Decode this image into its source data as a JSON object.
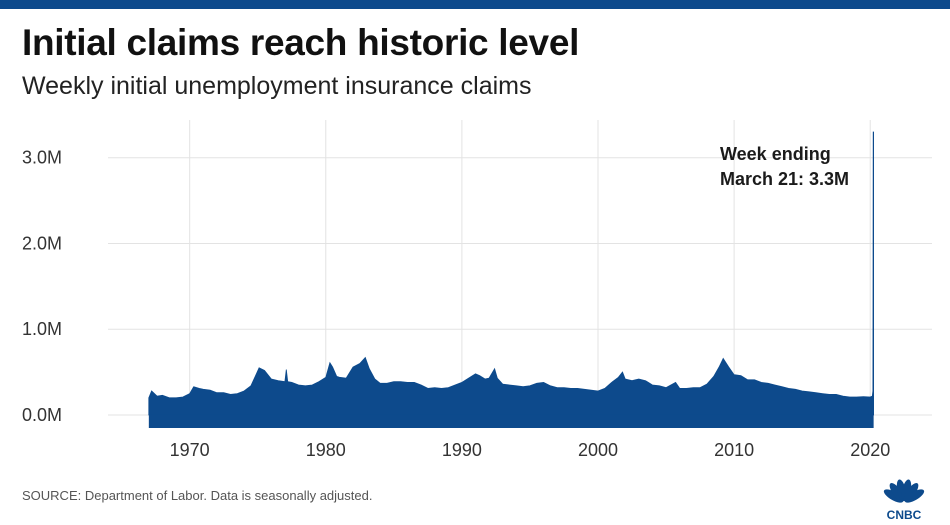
{
  "colors": {
    "accent": "#0d4a8c",
    "series": "#0d4a8c",
    "grid": "#e3e3e3"
  },
  "header": {
    "title": "Initial claims reach historic level",
    "subtitle": "Weekly initial unemployment insurance claims"
  },
  "footer": {
    "source": "SOURCE: Department of Labor. Data is seasonally adjusted.",
    "logo_text": "CNBC",
    "logo_icon": "peacock-icon"
  },
  "chart_data": {
    "type": "area",
    "ylim": [
      0,
      3300000
    ],
    "xlim": [
      1964.0,
      2021.6
    ],
    "grid": true,
    "y_ticks": [
      {
        "value": 0,
        "label": "0.0M"
      },
      {
        "value": 1000000,
        "label": "1.0M"
      },
      {
        "value": 2000000,
        "label": "2.0M"
      },
      {
        "value": 3000000,
        "label": "3.0M"
      }
    ],
    "x_ticks": [
      {
        "value": 1970,
        "label": "1970"
      },
      {
        "value": 1980,
        "label": "1980"
      },
      {
        "value": 1990,
        "label": "1990"
      },
      {
        "value": 2000,
        "label": "2000"
      },
      {
        "value": 2010,
        "label": "2010"
      },
      {
        "value": 2020,
        "label": "2020"
      }
    ],
    "series": [
      {
        "points": [
          [
            1967.0,
            200000
          ],
          [
            1967.2,
            280000
          ],
          [
            1967.6,
            220000
          ],
          [
            1968.0,
            230000
          ],
          [
            1968.5,
            200000
          ],
          [
            1969.0,
            200000
          ],
          [
            1969.5,
            210000
          ],
          [
            1970.0,
            250000
          ],
          [
            1970.3,
            330000
          ],
          [
            1970.7,
            310000
          ],
          [
            1971.0,
            300000
          ],
          [
            1971.5,
            290000
          ],
          [
            1972.0,
            260000
          ],
          [
            1972.5,
            260000
          ],
          [
            1973.0,
            240000
          ],
          [
            1973.5,
            250000
          ],
          [
            1974.0,
            280000
          ],
          [
            1974.5,
            340000
          ],
          [
            1974.9,
            480000
          ],
          [
            1975.1,
            550000
          ],
          [
            1975.5,
            520000
          ],
          [
            1976.0,
            420000
          ],
          [
            1976.5,
            400000
          ],
          [
            1977.0,
            390000
          ],
          [
            1977.1,
            530000
          ],
          [
            1977.2,
            390000
          ],
          [
            1977.5,
            380000
          ],
          [
            1978.0,
            350000
          ],
          [
            1978.5,
            340000
          ],
          [
            1979.0,
            350000
          ],
          [
            1979.5,
            390000
          ],
          [
            1980.0,
            440000
          ],
          [
            1980.3,
            610000
          ],
          [
            1980.5,
            560000
          ],
          [
            1980.8,
            450000
          ],
          [
            1981.0,
            440000
          ],
          [
            1981.5,
            430000
          ],
          [
            1982.0,
            560000
          ],
          [
            1982.5,
            600000
          ],
          [
            1982.9,
            670000
          ],
          [
            1983.2,
            540000
          ],
          [
            1983.6,
            420000
          ],
          [
            1984.0,
            370000
          ],
          [
            1984.5,
            370000
          ],
          [
            1985.0,
            390000
          ],
          [
            1985.5,
            390000
          ],
          [
            1986.0,
            380000
          ],
          [
            1986.5,
            380000
          ],
          [
            1987.0,
            350000
          ],
          [
            1987.5,
            310000
          ],
          [
            1988.0,
            320000
          ],
          [
            1988.5,
            310000
          ],
          [
            1989.0,
            320000
          ],
          [
            1989.5,
            350000
          ],
          [
            1990.0,
            380000
          ],
          [
            1990.5,
            430000
          ],
          [
            1991.0,
            480000
          ],
          [
            1991.3,
            460000
          ],
          [
            1991.7,
            420000
          ],
          [
            1992.0,
            430000
          ],
          [
            1992.4,
            540000
          ],
          [
            1992.6,
            430000
          ],
          [
            1993.0,
            360000
          ],
          [
            1993.5,
            350000
          ],
          [
            1994.0,
            340000
          ],
          [
            1994.5,
            330000
          ],
          [
            1995.0,
            340000
          ],
          [
            1995.5,
            370000
          ],
          [
            1996.0,
            380000
          ],
          [
            1996.5,
            340000
          ],
          [
            1997.0,
            320000
          ],
          [
            1997.5,
            320000
          ],
          [
            1998.0,
            310000
          ],
          [
            1998.5,
            310000
          ],
          [
            1999.0,
            300000
          ],
          [
            1999.5,
            290000
          ],
          [
            2000.0,
            280000
          ],
          [
            2000.5,
            310000
          ],
          [
            2001.0,
            380000
          ],
          [
            2001.5,
            440000
          ],
          [
            2001.8,
            500000
          ],
          [
            2002.0,
            420000
          ],
          [
            2002.5,
            400000
          ],
          [
            2003.0,
            420000
          ],
          [
            2003.5,
            400000
          ],
          [
            2004.0,
            350000
          ],
          [
            2004.5,
            340000
          ],
          [
            2005.0,
            320000
          ],
          [
            2005.7,
            380000
          ],
          [
            2006.0,
            310000
          ],
          [
            2006.5,
            310000
          ],
          [
            2007.0,
            320000
          ],
          [
            2007.5,
            320000
          ],
          [
            2008.0,
            360000
          ],
          [
            2008.5,
            450000
          ],
          [
            2008.9,
            560000
          ],
          [
            2009.2,
            660000
          ],
          [
            2009.6,
            560000
          ],
          [
            2010.0,
            470000
          ],
          [
            2010.5,
            460000
          ],
          [
            2011.0,
            410000
          ],
          [
            2011.5,
            410000
          ],
          [
            2012.0,
            380000
          ],
          [
            2012.5,
            370000
          ],
          [
            2013.0,
            350000
          ],
          [
            2013.5,
            330000
          ],
          [
            2014.0,
            310000
          ],
          [
            2014.5,
            300000
          ],
          [
            2015.0,
            280000
          ],
          [
            2015.5,
            270000
          ],
          [
            2016.0,
            260000
          ],
          [
            2016.5,
            250000
          ],
          [
            2017.0,
            240000
          ],
          [
            2017.5,
            240000
          ],
          [
            2018.0,
            220000
          ],
          [
            2018.5,
            210000
          ],
          [
            2019.0,
            210000
          ],
          [
            2019.5,
            215000
          ],
          [
            2020.0,
            210000
          ],
          [
            2020.15,
            220000
          ],
          [
            2020.2,
            280000
          ],
          [
            2020.22,
            3300000
          ],
          [
            2020.25,
            3300000
          ]
        ]
      }
    ],
    "annotation": {
      "lines": [
        "Week ending",
        "March 21: 3.3M"
      ]
    }
  }
}
